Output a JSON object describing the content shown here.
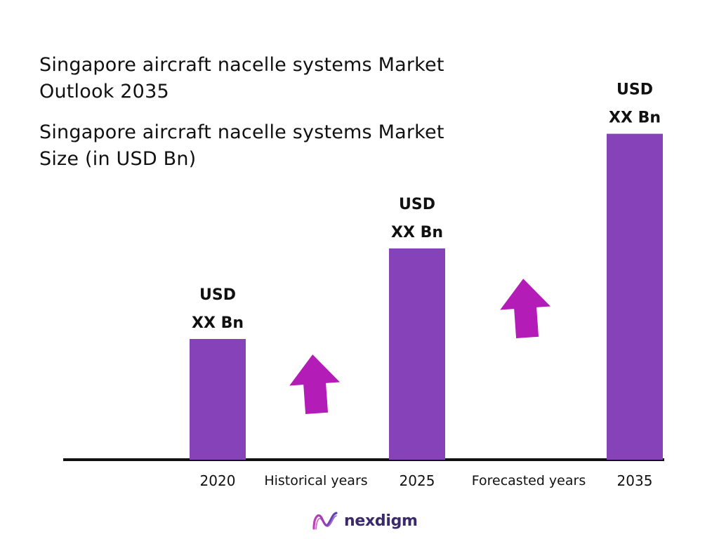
{
  "header": {
    "title": "Singapore aircraft nacelle systems Market Outlook 2035",
    "subtitle": "Singapore aircraft nacelle systems Market Size (in USD Bn)"
  },
  "chart_data": {
    "type": "bar",
    "categories": [
      "2020",
      "2025",
      "2035"
    ],
    "values": [
      1.0,
      1.75,
      2.7
    ],
    "value_labels": [
      {
        "line1": "USD",
        "line2": "XX Bn"
      },
      {
        "line1": "USD",
        "line2": "XX Bn"
      },
      {
        "line1": "USD",
        "line2": "XX Bn"
      }
    ],
    "period_labels": [
      "Historical years",
      "Forecasted years"
    ],
    "bar_color": "#8642b9",
    "arrow_color": "#b41cb8",
    "axis_color": "#111111",
    "grid": false,
    "legend": "none"
  },
  "logo": {
    "text": "nexdigm",
    "icon": "nexdigm-wave-icon"
  }
}
